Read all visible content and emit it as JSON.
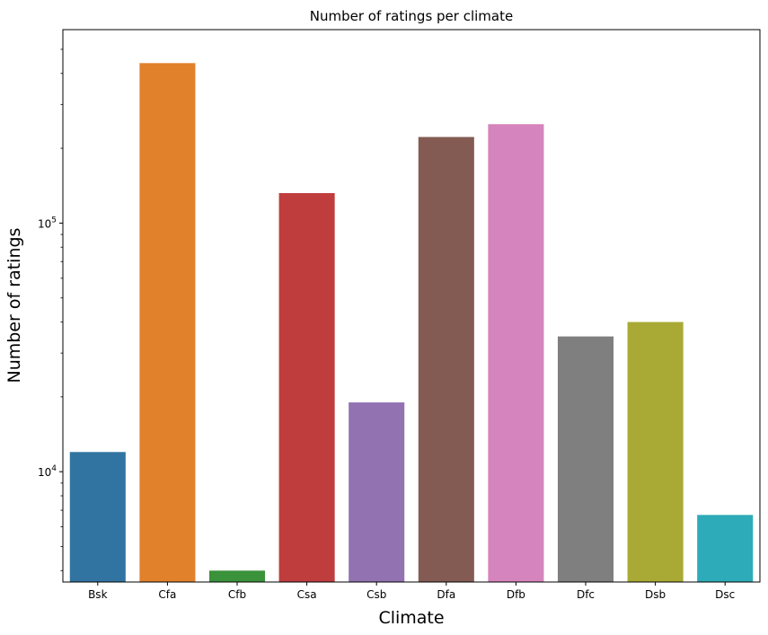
{
  "chart_data": {
    "type": "bar",
    "title": "Number of ratings per climate",
    "xlabel": "Climate",
    "ylabel": "Number of ratings",
    "yscale": "log",
    "ylim": [
      3600,
      600000
    ],
    "grid": false,
    "legend": "none",
    "categories": [
      "Bsk",
      "Cfa",
      "Cfb",
      "Csa",
      "Csb",
      "Dfa",
      "Dfb",
      "Dfc",
      "Dsb",
      "Dsc"
    ],
    "values": [
      12000,
      440000,
      4000,
      132000,
      19000,
      222000,
      250000,
      35000,
      40000,
      6700
    ],
    "colors": [
      "#3274a1",
      "#e1812c",
      "#3a923a",
      "#c03d3e",
      "#9372b2",
      "#845b53",
      "#d684bd",
      "#7f7f7f",
      "#a9aa35",
      "#2eabb8"
    ],
    "major_ticks": [
      {
        "value": 10000,
        "base": "10",
        "exp": "4"
      },
      {
        "value": 100000,
        "base": "10",
        "exp": "5"
      }
    ],
    "minor_ticks": [
      4000,
      5000,
      6000,
      7000,
      8000,
      9000,
      20000,
      30000,
      40000,
      50000,
      60000,
      70000,
      80000,
      90000,
      200000,
      300000,
      400000,
      500000
    ]
  }
}
